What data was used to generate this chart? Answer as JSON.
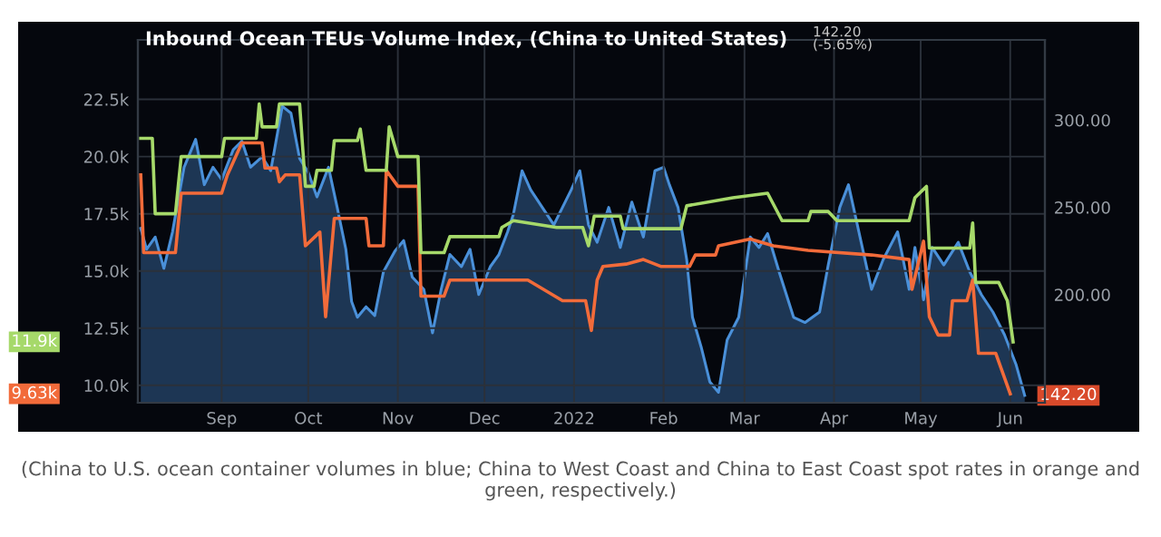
{
  "chart_data": {
    "type": "line",
    "title": "Inbound Ocean TEUs Volume Index, (China to United States)",
    "xlim": [
      "2021-08-03",
      "2022-06-13"
    ],
    "xticks": [
      {
        "value": "2021-09-01",
        "label": "Sep"
      },
      {
        "value": "2021-10-01",
        "label": "Oct"
      },
      {
        "value": "2021-11-01",
        "label": "Nov"
      },
      {
        "value": "2021-12-01",
        "label": "Dec"
      },
      {
        "value": "2022-01-01",
        "label": "2022"
      },
      {
        "value": "2022-02-01",
        "label": "Feb"
      },
      {
        "value": "2022-03-01",
        "label": "Mar"
      },
      {
        "value": "2022-04-01",
        "label": "Apr"
      },
      {
        "value": "2022-05-01",
        "label": "May"
      },
      {
        "value": "2022-06-01",
        "label": "Jun"
      }
    ],
    "ylim": [
      9240,
      25100
    ],
    "yticks": [
      {
        "value": 10000,
        "label": "10.0k"
      },
      {
        "value": 12500,
        "label": "12.5k"
      },
      {
        "value": 15000,
        "label": "15.0k"
      },
      {
        "value": 17500,
        "label": "17.5k"
      },
      {
        "value": 20000,
        "label": "20.0k"
      },
      {
        "value": 22500,
        "label": "22.5k"
      }
    ],
    "y2lim": [
      138,
      346
    ],
    "y2ticks": [
      {
        "value": 200,
        "label": "200.00"
      },
      {
        "value": 250,
        "label": "250.00"
      },
      {
        "value": 300,
        "label": "300.00"
      }
    ],
    "grid": true,
    "legend": false,
    "series": [
      {
        "type": "area",
        "axis": "y2",
        "color": "#4a90d9",
        "x": [
          "2021-08-04",
          "2021-08-06",
          "2021-08-09",
          "2021-08-12",
          "2021-08-15",
          "2021-08-19",
          "2021-08-23",
          "2021-08-26",
          "2021-08-29",
          "2021-09-01",
          "2021-09-05",
          "2021-09-08",
          "2021-09-11",
          "2021-09-15",
          "2021-09-18",
          "2021-09-22",
          "2021-09-25",
          "2021-09-28",
          "2021-10-01",
          "2021-10-04",
          "2021-10-08",
          "2021-10-11",
          "2021-10-14",
          "2021-10-16",
          "2021-10-18",
          "2021-10-21",
          "2021-10-24",
          "2021-10-27",
          "2021-10-31",
          "2021-11-03",
          "2021-11-06",
          "2021-11-10",
          "2021-11-13",
          "2021-11-16",
          "2021-11-19",
          "2021-11-23",
          "2021-11-26",
          "2021-11-29",
          "2021-12-03",
          "2021-12-06",
          "2021-12-09",
          "2021-12-11",
          "2021-12-14",
          "2021-12-17",
          "2021-12-21",
          "2021-12-25",
          "2021-12-28",
          "2021-12-31",
          "2022-01-03",
          "2022-01-06",
          "2022-01-09",
          "2022-01-13",
          "2022-01-17",
          "2022-01-21",
          "2022-01-25",
          "2022-01-29",
          "2022-02-01",
          "2022-02-03",
          "2022-02-06",
          "2022-02-09",
          "2022-02-11",
          "2022-02-14",
          "2022-02-17",
          "2022-02-20",
          "2022-02-23",
          "2022-02-27",
          "2022-03-03",
          "2022-03-06",
          "2022-03-09",
          "2022-03-13",
          "2022-03-18",
          "2022-03-22",
          "2022-03-27",
          "2022-03-30",
          "2022-04-03",
          "2022-04-06",
          "2022-04-10",
          "2022-04-14",
          "2022-04-18",
          "2022-04-23",
          "2022-04-27",
          "2022-04-29",
          "2022-05-02",
          "2022-05-05",
          "2022-05-09",
          "2022-05-14",
          "2022-05-18",
          "2022-05-22",
          "2022-05-26",
          "2022-05-30",
          "2022-06-03",
          "2022-06-06"
        ],
        "values": [
          238,
          226,
          233,
          215,
          236,
          273,
          289,
          263,
          273,
          266,
          283,
          288,
          273,
          279,
          271,
          308,
          304,
          278,
          270,
          256,
          273,
          250,
          226,
          196,
          187,
          193,
          188,
          213,
          225,
          231,
          210,
          203,
          178,
          203,
          223,
          216,
          226,
          200,
          216,
          223,
          236,
          246,
          271,
          260,
          250,
          240,
          250,
          260,
          271,
          240,
          230,
          250,
          227,
          253,
          233,
          271,
          273,
          263,
          250,
          220,
          187,
          170,
          150,
          144,
          174,
          187,
          233,
          227,
          235,
          213,
          187,
          184,
          190,
          217,
          250,
          263,
          233,
          203,
          220,
          236,
          203,
          227,
          197,
          227,
          217,
          230,
          213,
          200,
          190,
          177,
          160,
          142.2
        ]
      },
      {
        "color": "#f26b3a",
        "x": [
          "2021-08-04",
          "2021-08-05",
          "2021-08-16",
          "2021-08-18",
          "2021-09-01",
          "2021-09-03",
          "2021-09-08",
          "2021-09-15",
          "2021-09-16",
          "2021-09-20",
          "2021-09-21",
          "2021-09-23",
          "2021-09-28",
          "2021-09-30",
          "2021-10-05",
          "2021-10-07",
          "2021-10-10",
          "2021-10-21",
          "2021-10-22",
          "2021-10-27",
          "2021-10-28",
          "2021-11-01",
          "2021-11-08",
          "2021-11-09",
          "2021-11-17",
          "2021-11-19",
          "2021-12-16",
          "2021-12-28",
          "2022-01-05",
          "2022-01-07",
          "2022-01-09",
          "2022-01-11",
          "2022-01-19",
          "2022-01-25",
          "2022-01-31",
          "2022-02-10",
          "2022-02-12",
          "2022-02-19",
          "2022-02-20",
          "2022-03-03",
          "2022-03-11",
          "2022-03-23",
          "2022-04-14",
          "2022-04-27",
          "2022-04-28",
          "2022-05-02",
          "2022-05-04",
          "2022-05-07",
          "2022-05-11",
          "2022-05-12",
          "2022-05-17",
          "2022-05-19",
          "2022-05-21",
          "2022-05-27",
          "2022-06-01"
        ],
        "values": [
          19200,
          15800,
          15800,
          18400,
          18400,
          19200,
          20600,
          20600,
          19500,
          19500,
          18900,
          19200,
          19200,
          16100,
          16700,
          13000,
          17300,
          17300,
          16100,
          16100,
          19400,
          18700,
          18700,
          13900,
          13900,
          14600,
          14600,
          13700,
          13700,
          12400,
          14600,
          15200,
          15300,
          15500,
          15200,
          15200,
          15700,
          15700,
          16100,
          16400,
          16100,
          15900,
          15700,
          15500,
          14200,
          16300,
          13000,
          12200,
          12200,
          13700,
          13700,
          14600,
          11400,
          11400,
          9630
        ]
      },
      {
        "color": "#a6d96a",
        "x": [
          "2021-08-04",
          "2021-08-08",
          "2021-08-09",
          "2021-08-16",
          "2021-08-18",
          "2021-09-01",
          "2021-09-02",
          "2021-09-13",
          "2021-09-14",
          "2021-09-15",
          "2021-09-20",
          "2021-09-21",
          "2021-09-28",
          "2021-09-30",
          "2021-10-03",
          "2021-10-04",
          "2021-10-09",
          "2021-10-10",
          "2021-10-18",
          "2021-10-19",
          "2021-10-21",
          "2021-10-28",
          "2021-10-29",
          "2021-11-01",
          "2021-11-08",
          "2021-11-09",
          "2021-11-17",
          "2021-11-19",
          "2021-12-06",
          "2021-12-07",
          "2021-12-11",
          "2021-12-26",
          "2022-01-04",
          "2022-01-06",
          "2022-01-08",
          "2022-01-17",
          "2022-01-18",
          "2022-02-07",
          "2022-02-09",
          "2022-02-25",
          "2022-03-09",
          "2022-03-14",
          "2022-03-23",
          "2022-03-24",
          "2022-03-30",
          "2022-04-02",
          "2022-04-27",
          "2022-04-29",
          "2022-05-03",
          "2022-05-04",
          "2022-05-18",
          "2022-05-19",
          "2022-05-20",
          "2022-05-28",
          "2022-05-31",
          "2022-06-02"
        ],
        "values": [
          20800,
          20800,
          17500,
          17500,
          20000,
          20000,
          20800,
          20800,
          22300,
          21300,
          21300,
          22300,
          22300,
          18700,
          18700,
          19400,
          19400,
          20700,
          20700,
          21200,
          19400,
          19400,
          21300,
          20000,
          20000,
          15800,
          15800,
          16500,
          16500,
          16900,
          17200,
          16900,
          16900,
          16100,
          17400,
          17400,
          16850,
          16850,
          17850,
          18200,
          18400,
          17200,
          17200,
          17600,
          17600,
          17200,
          17200,
          18200,
          18700,
          16000,
          16000,
          17100,
          14500,
          14500,
          13700,
          11900
        ]
      }
    ],
    "annotations": [
      "142.20",
      "(-5.65%)",
      "11.9k",
      "9.63k",
      "142.20",
      "(China to U.S. ocean container volumes in blue; China to West Coast and China to East Coast spot rates in orange and green, respectively.)"
    ]
  }
}
